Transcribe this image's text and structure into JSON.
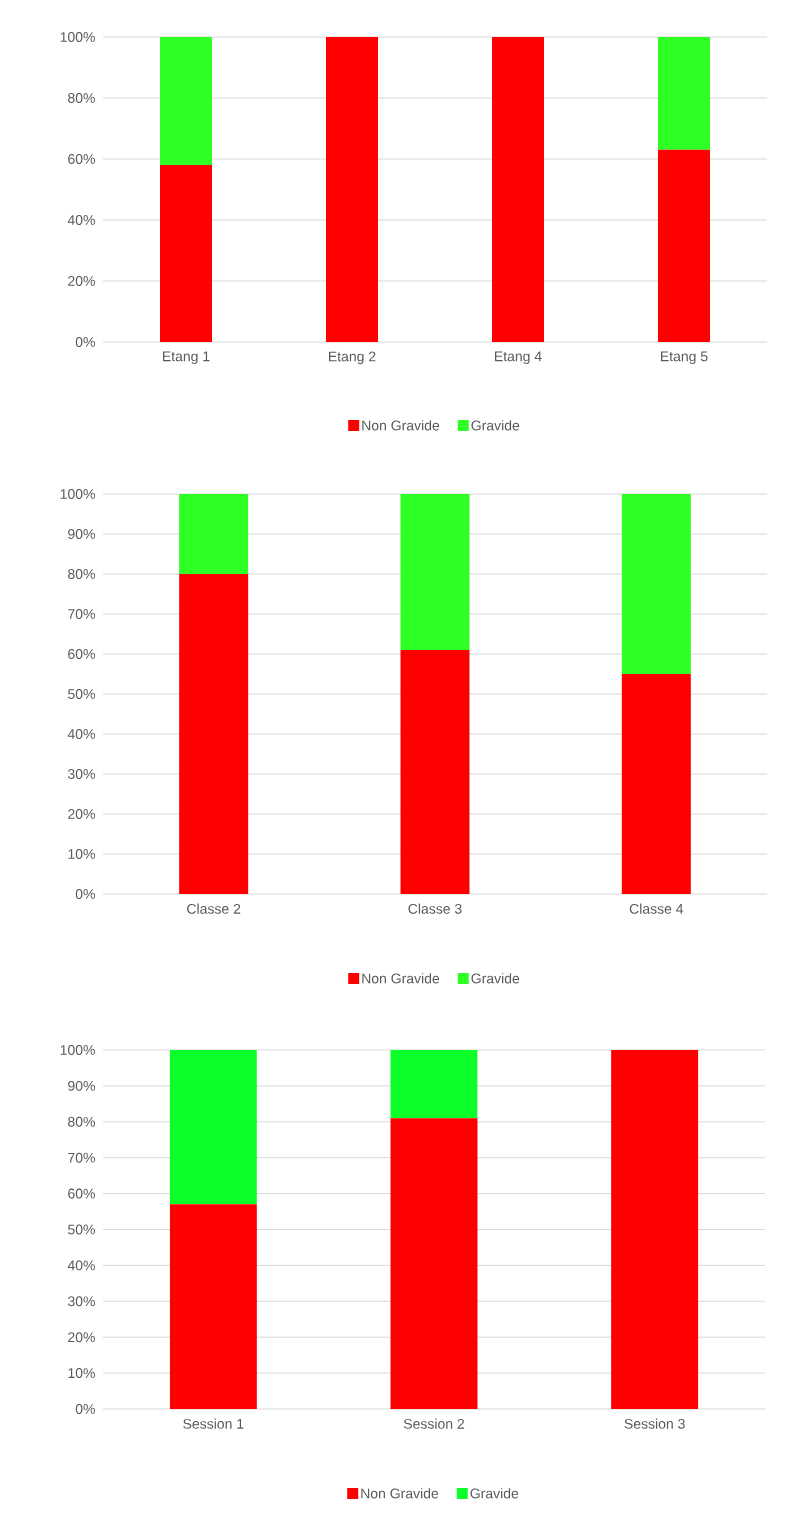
{
  "chart_data": [
    {
      "type": "bar",
      "stacked": true,
      "categories": [
        "Etang 1",
        "Etang 2",
        "Etang 4",
        "Etang 5"
      ],
      "series": [
        {
          "name": "Non Gravide",
          "color": "#ff0000",
          "values": [
            58,
            100,
            100,
            63
          ]
        },
        {
          "name": "Gravide",
          "color": "#2eff24",
          "values": [
            42,
            0,
            0,
            37
          ]
        }
      ],
      "ylim": [
        0,
        100
      ],
      "yticks": [
        {
          "value": 0,
          "label": "0%"
        },
        {
          "value": 20,
          "label": "20%"
        },
        {
          "value": 40,
          "label": "40%"
        },
        {
          "value": 60,
          "label": "60%"
        },
        {
          "value": 80,
          "label": "80%"
        },
        {
          "value": 100,
          "label": "100%"
        }
      ],
      "grid": "y",
      "legend": "bottom"
    },
    {
      "type": "bar",
      "stacked": true,
      "categories": [
        "Classe 2",
        "Classe 3",
        "Classe 4"
      ],
      "series": [
        {
          "name": "Non Gravide",
          "color": "#ff0000",
          "values": [
            80,
            61,
            55
          ]
        },
        {
          "name": "Gravide",
          "color": "#2eff24",
          "values": [
            20,
            39,
            45
          ]
        }
      ],
      "ylim": [
        0,
        100
      ],
      "yticks": [
        {
          "value": 0,
          "label": "0%"
        },
        {
          "value": 10,
          "label": "10%"
        },
        {
          "value": 20,
          "label": "20%"
        },
        {
          "value": 30,
          "label": "30%"
        },
        {
          "value": 40,
          "label": "40%"
        },
        {
          "value": 50,
          "label": "50%"
        },
        {
          "value": 60,
          "label": "60%"
        },
        {
          "value": 70,
          "label": "70%"
        },
        {
          "value": 80,
          "label": "80%"
        },
        {
          "value": 90,
          "label": "90%"
        },
        {
          "value": 100,
          "label": "100%"
        }
      ],
      "grid": "y",
      "legend": "bottom"
    },
    {
      "type": "bar",
      "stacked": true,
      "categories": [
        "Session 1",
        "Session 2",
        "Session 3"
      ],
      "series": [
        {
          "name": "Non Gravide",
          "color": "#ff0000",
          "values": [
            57,
            81,
            100
          ]
        },
        {
          "name": "Gravide",
          "color": "#0dff2a",
          "values": [
            43,
            19,
            0
          ]
        }
      ],
      "ylim": [
        0,
        100
      ],
      "yticks": [
        {
          "value": 0,
          "label": "0%"
        },
        {
          "value": 10,
          "label": "10%"
        },
        {
          "value": 20,
          "label": "20%"
        },
        {
          "value": 30,
          "label": "30%"
        },
        {
          "value": 40,
          "label": "40%"
        },
        {
          "value": 50,
          "label": "50%"
        },
        {
          "value": 60,
          "label": "60%"
        },
        {
          "value": 70,
          "label": "70%"
        },
        {
          "value": 80,
          "label": "80%"
        },
        {
          "value": 90,
          "label": "90%"
        },
        {
          "value": 100,
          "label": "100%"
        }
      ],
      "grid": "y",
      "legend": "bottom"
    }
  ]
}
